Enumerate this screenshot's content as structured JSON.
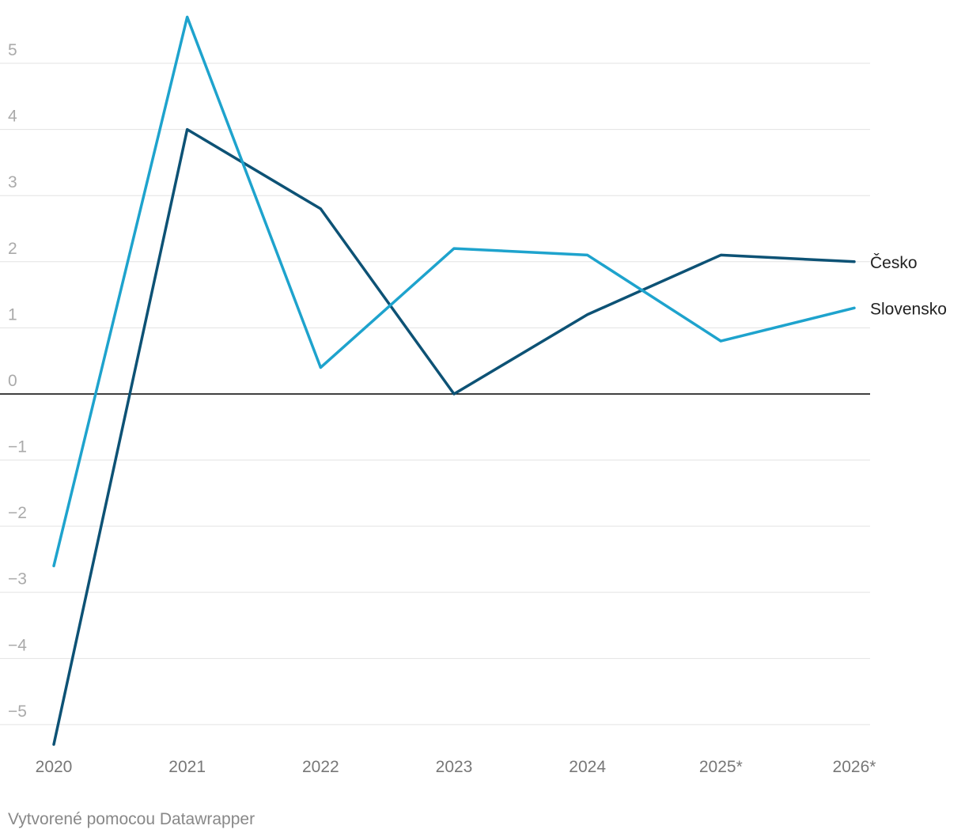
{
  "chart_data": {
    "type": "line",
    "categories": [
      "2020",
      "2021",
      "2022",
      "2023",
      "2024",
      "2025*",
      "2026*"
    ],
    "series": [
      {
        "name": "Česko",
        "color": "#0d5275",
        "values": [
          -5.3,
          4.0,
          2.8,
          0.0,
          1.2,
          2.1,
          2.0
        ]
      },
      {
        "name": "Slovensko",
        "color": "#1ea3cd",
        "values": [
          -2.6,
          5.7,
          0.4,
          2.2,
          2.1,
          0.8,
          1.3
        ]
      }
    ],
    "ylim": [
      -5.3,
      5.7
    ],
    "yticks": [
      {
        "value": -5,
        "label": "−5"
      },
      {
        "value": -4,
        "label": "−4"
      },
      {
        "value": -3,
        "label": "−3"
      },
      {
        "value": -2,
        "label": "−2"
      },
      {
        "value": -1,
        "label": "−1"
      },
      0,
      1,
      2,
      3,
      4,
      5
    ],
    "grid": true,
    "footer": "Vytvorené pomocou Datawrapper"
  }
}
